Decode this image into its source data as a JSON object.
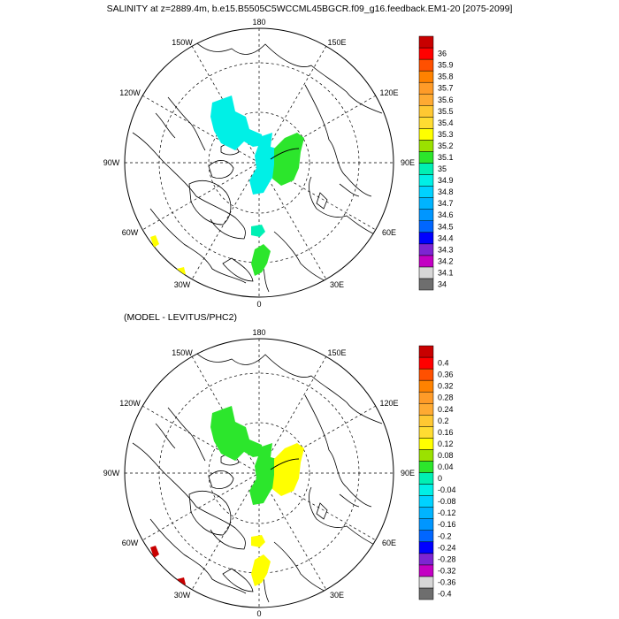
{
  "title": "SALINITY at z=2889.4m, b.e15.B5505C5WCCML45BGCR.f09_g16.feedback.EM1-20 [2075-2099]",
  "subtitle": "(MODEL - LEVITUS/PHC2)",
  "longitude_labels": {
    "top": "180",
    "upper_left": "150W",
    "upper_right": "150E",
    "left_upper": "120W",
    "right_upper": "120E",
    "left_mid": "90W",
    "right_mid": "90E",
    "left_lower": "60W",
    "right_lower": "60E",
    "lower_left": "30W",
    "lower_right": "30E",
    "bottom": "0"
  },
  "colorbar_top": {
    "colors": [
      "#6e6e6e",
      "#d7d7d7",
      "#c300c3",
      "#7d24d2",
      "#0000ff",
      "#0066ff",
      "#0096ff",
      "#00b4ff",
      "#00d2ff",
      "#00f0e6",
      "#00f0b4",
      "#2ce62c",
      "#9be100",
      "#ffff00",
      "#ffdc32",
      "#ffc832",
      "#ffaa32",
      "#ff9b28",
      "#ff8200",
      "#ff5000",
      "#ff0000",
      "#c80000"
    ],
    "labels": [
      "34",
      "34.1",
      "34.2",
      "34.3",
      "34.4",
      "34.5",
      "34.6",
      "34.7",
      "34.8",
      "34.9",
      "35",
      "35.1",
      "35.2",
      "35.3",
      "35.4",
      "35.5",
      "35.6",
      "35.7",
      "35.8",
      "35.9",
      "36"
    ]
  },
  "colorbar_bottom": {
    "colors": [
      "#6e6e6e",
      "#d7d7d7",
      "#c300c3",
      "#7d24d2",
      "#0000ff",
      "#0066ff",
      "#0096ff",
      "#00b4ff",
      "#00d2ff",
      "#00f0e6",
      "#00f0b4",
      "#2ce62c",
      "#9be100",
      "#ffff00",
      "#ffdc32",
      "#ffc832",
      "#ffaa32",
      "#ff9b28",
      "#ff8200",
      "#ff5000",
      "#ff0000",
      "#c80000"
    ],
    "labels": [
      "-0.4",
      "-0.36",
      "-0.32",
      "-0.28",
      "-0.24",
      "-0.2",
      "-0.16",
      "-0.12",
      "-0.08",
      "-0.04",
      "0",
      "0.04",
      "0.08",
      "0.12",
      "0.16",
      "0.2",
      "0.24",
      "0.28",
      "0.32",
      "0.36",
      "0.4"
    ]
  },
  "field_colors": {
    "top_pacific_side": "#00f0e6",
    "top_central": "#00f0e6",
    "top_siberian": "#2ce62c",
    "top_small_patch": "#00f0b4",
    "top_nordic": "#2ce62c",
    "top_labrador": "#ffff00",
    "bottom_pacific_side": "#2ce62c",
    "bottom_central": "#2ce62c",
    "bottom_siberian": "#ffff00",
    "bottom_small_patch": "#ffff00",
    "bottom_nordic": "#ffff00",
    "bottom_labrador": "#c80000"
  }
}
